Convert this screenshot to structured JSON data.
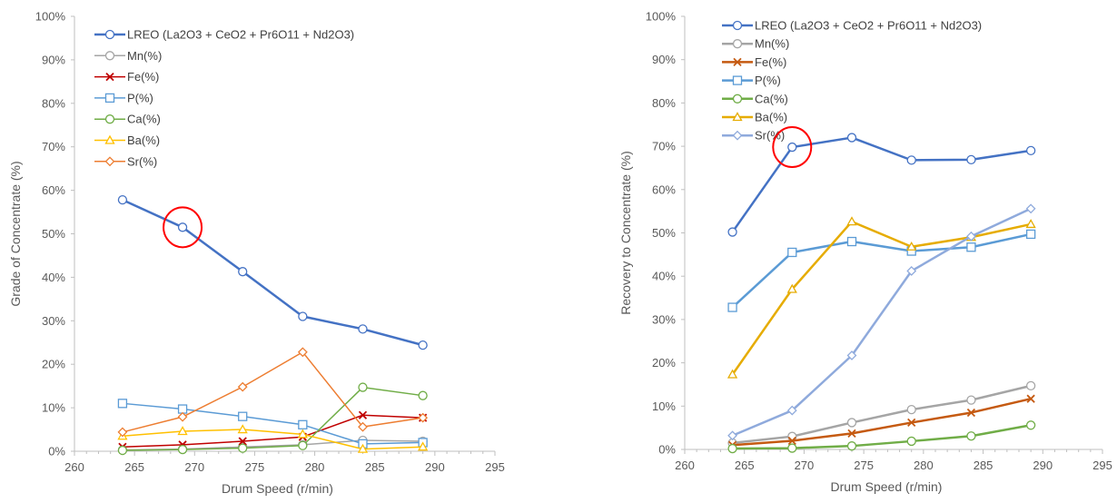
{
  "chart_data": [
    {
      "type": "line",
      "xlabel": "Drum Speed (r/min)",
      "ylabel": "Grade of Concentrate (%)",
      "xlim": [
        260,
        295
      ],
      "xticks": [
        260,
        265,
        270,
        275,
        280,
        285,
        290,
        295
      ],
      "xtick_labels": [
        "260",
        "265",
        "270",
        "275",
        "280",
        "285",
        "290",
        "295"
      ],
      "ylim": [
        0,
        100
      ],
      "yticks": [
        0,
        10,
        20,
        30,
        40,
        50,
        60,
        70,
        80,
        90,
        100
      ],
      "ytick_labels": [
        "0%",
        "10%",
        "20%",
        "30%",
        "40%",
        "50%",
        "60%",
        "70%",
        "80%",
        "90%",
        "100%"
      ],
      "grid": false,
      "legend": "top-left",
      "x": [
        264,
        269,
        274,
        279,
        284,
        289
      ],
      "series": [
        {
          "name": "LREO (La2O3 + CeO2 + Pr6O11 + Nd2O3)",
          "values": [
            57.8,
            51.5,
            41.3,
            31.0,
            28.1,
            24.4
          ],
          "color": "#4472C4",
          "marker": "circle",
          "width": 2.5
        },
        {
          "name": "Mn(%)",
          "values": [
            0.3,
            0.5,
            1.0,
            1.5,
            2.5,
            2.3
          ],
          "color": "#A5A5A5",
          "marker": "circle",
          "width": 1.5
        },
        {
          "name": "Fe(%)",
          "values": [
            1.0,
            1.5,
            2.3,
            3.3,
            8.3,
            7.7
          ],
          "color": "#C00000",
          "marker": "x",
          "width": 1.5
        },
        {
          "name": "P(%)",
          "values": [
            11.0,
            9.7,
            8.0,
            6.1,
            1.7,
            2.0
          ],
          "color": "#5B9BD5",
          "marker": "square",
          "width": 1.5
        },
        {
          "name": "Ca(%)",
          "values": [
            0.2,
            0.4,
            0.7,
            1.3,
            14.7,
            12.8
          ],
          "color": "#70AD47",
          "marker": "circle",
          "width": 1.5
        },
        {
          "name": "Ba(%)",
          "values": [
            3.5,
            4.6,
            5.0,
            3.9,
            0.5,
            1.0
          ],
          "color": "#FFC000",
          "marker": "triangle",
          "width": 1.5
        },
        {
          "name": "Sr(%)",
          "values": [
            4.4,
            7.9,
            14.8,
            22.8,
            5.6,
            7.7
          ],
          "color": "#ED7D31",
          "marker": "diamond",
          "width": 1.5
        }
      ],
      "highlight": {
        "x": 269,
        "y": 51.5,
        "color": "#FF0000"
      }
    },
    {
      "type": "line",
      "xlabel": "Drum Speed (r/min)",
      "ylabel": "Recovery to Concentrate (%)",
      "xlim": [
        260,
        295
      ],
      "xticks": [
        260,
        265,
        270,
        275,
        280,
        285,
        290,
        295
      ],
      "xtick_labels": [
        "260",
        "265",
        "270",
        "275",
        "280",
        "285",
        "290",
        "295"
      ],
      "ylim": [
        0,
        100
      ],
      "yticks": [
        0,
        10,
        20,
        30,
        40,
        50,
        60,
        70,
        80,
        90,
        100
      ],
      "ytick_labels": [
        "0%",
        "10%",
        "20%",
        "30%",
        "40%",
        "50%",
        "60%",
        "70%",
        "80%",
        "90%",
        "100%"
      ],
      "grid": false,
      "legend": "top-left",
      "x": [
        264,
        269,
        274,
        279,
        284,
        289
      ],
      "series": [
        {
          "name": "LREO (La2O3 + CeO2 + Pr6O11 + Nd2O3)",
          "values": [
            50.2,
            69.8,
            72.0,
            66.8,
            66.9,
            69.0
          ],
          "color": "#4472C4",
          "marker": "circle",
          "width": 2.5
        },
        {
          "name": "Mn(%)",
          "values": [
            1.5,
            3.0,
            6.2,
            9.2,
            11.4,
            14.7
          ],
          "color": "#A5A5A5",
          "marker": "circle",
          "width": 2.5
        },
        {
          "name": "Fe(%)",
          "values": [
            1.0,
            2.0,
            3.7,
            6.2,
            8.5,
            11.7
          ],
          "color": "#C55A11",
          "marker": "x",
          "width": 2.5
        },
        {
          "name": "P(%)",
          "values": [
            32.8,
            45.5,
            48.0,
            45.8,
            46.7,
            49.7
          ],
          "color": "#5B9BD5",
          "marker": "square",
          "width": 2.5
        },
        {
          "name": "Ca(%)",
          "values": [
            0.2,
            0.3,
            0.8,
            1.9,
            3.1,
            5.6
          ],
          "color": "#70AD47",
          "marker": "circle",
          "width": 2.5
        },
        {
          "name": "Ba(%)",
          "values": [
            17.3,
            37.0,
            52.6,
            46.8,
            49.0,
            52.0
          ],
          "color": "#E6AC00",
          "marker": "triangle",
          "width": 2.5
        },
        {
          "name": "Sr(%)",
          "values": [
            3.2,
            9.0,
            21.7,
            41.2,
            49.2,
            55.6
          ],
          "color": "#8FAADC",
          "marker": "diamond",
          "width": 2.5
        }
      ],
      "highlight": {
        "x": 269,
        "y": 69.8,
        "color": "#FF0000"
      }
    }
  ]
}
